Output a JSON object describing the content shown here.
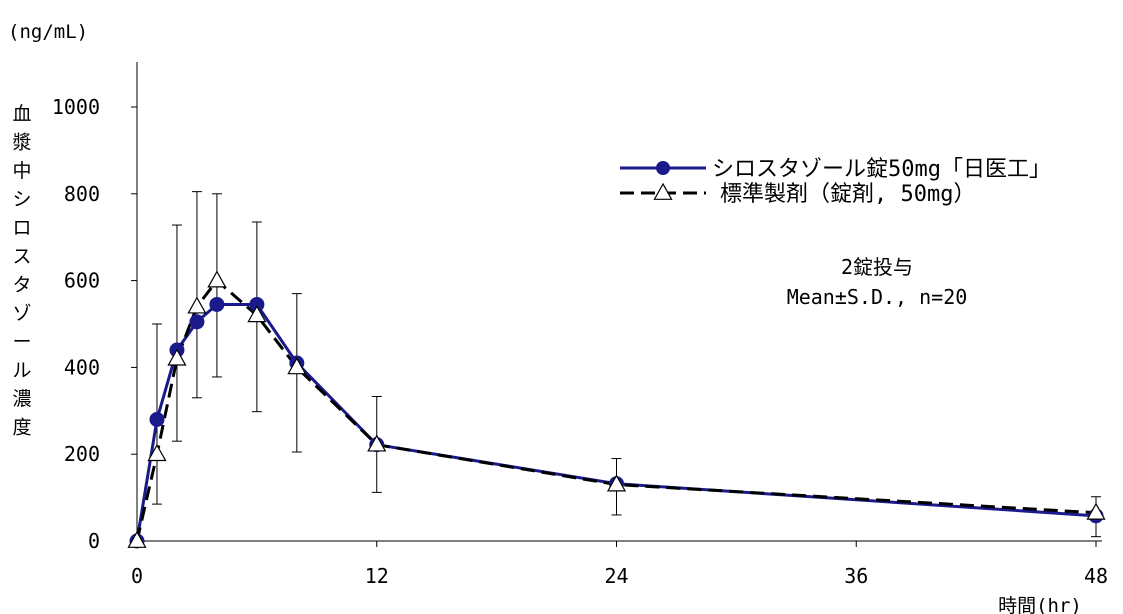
{
  "chart_data": {
    "type": "line",
    "unit_label": "(ng/mL)",
    "ylabel": "血漿中シロスタゾール濃度",
    "xlabel": "時間(hr)",
    "xlim": [
      0,
      48
    ],
    "ylim": [
      0,
      1000
    ],
    "x_ticks": [
      0,
      12,
      24,
      36,
      48
    ],
    "y_ticks": [
      0,
      200,
      400,
      600,
      800,
      1000
    ],
    "annotation": [
      "2錠投与",
      "Mean±S.D., n=20"
    ],
    "series": [
      {
        "name": "シロスタゾール錠50mg「日医工」",
        "color": "#1a1a8c",
        "marker": "filled-circle",
        "line": "solid",
        "x": [
          0,
          1,
          2,
          3,
          4,
          6,
          8,
          12,
          24,
          48
        ],
        "y": [
          0,
          280,
          440,
          505,
          545,
          545,
          410,
          222,
          132,
          58
        ]
      },
      {
        "name": "標準製剤（錠剤, 50mg）",
        "color": "#000000",
        "marker": "open-triangle",
        "line": "dashed",
        "x": [
          0,
          1,
          2,
          3,
          4,
          6,
          8,
          12,
          24,
          48
        ],
        "y": [
          0,
          200,
          420,
          540,
          600,
          520,
          400,
          222,
          130,
          65
        ],
        "err_low": [
          0,
          85,
          230,
          330,
          378,
          298,
          205,
          112,
          60,
          10
        ],
        "err_high": [
          0,
          500,
          728,
          805,
          800,
          735,
          570,
          333,
          190,
          102
        ]
      }
    ]
  }
}
